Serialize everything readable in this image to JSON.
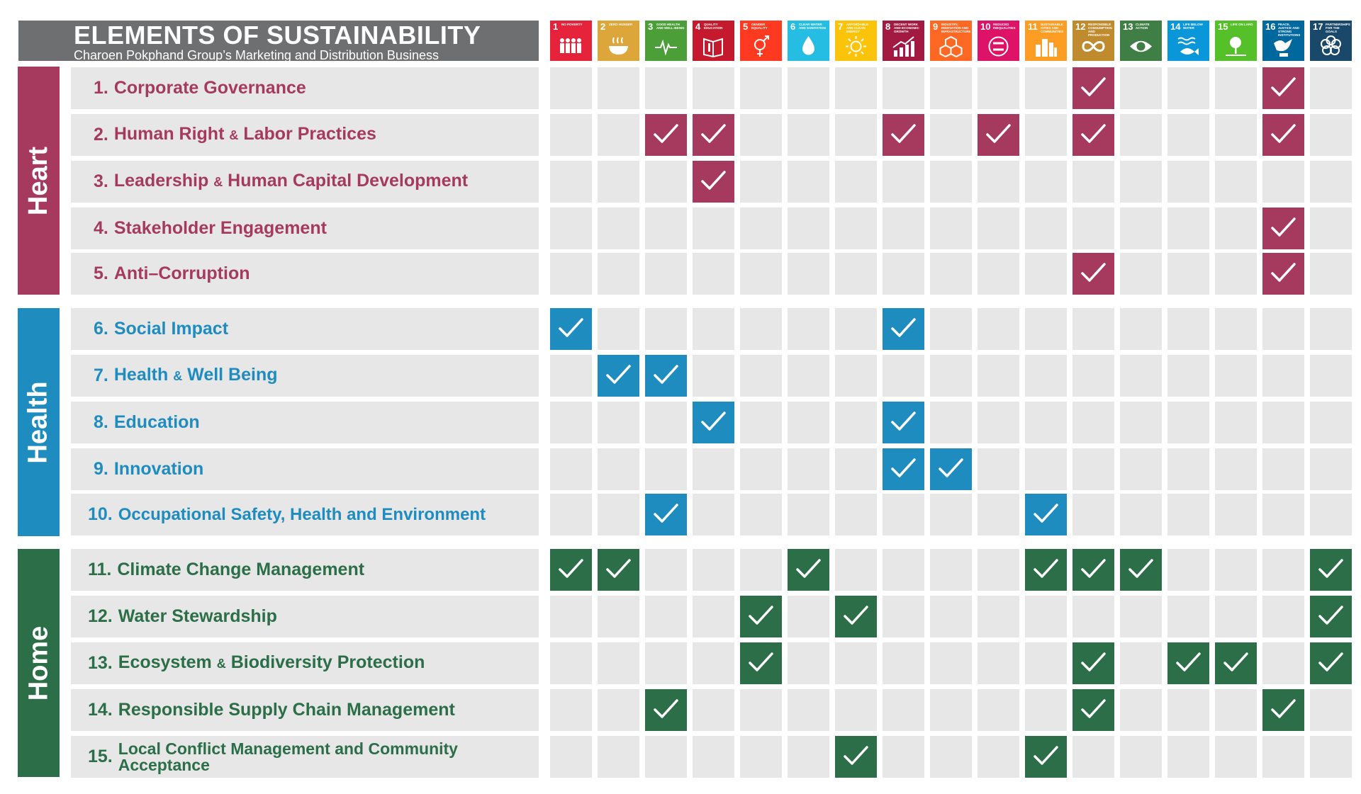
{
  "title": "ELEMENTS OF SUSTAINABILITY",
  "subtitle": "Charoen Pokphand Group’s Marketing and Distribution Business",
  "chart_data": {
    "type": "table",
    "columns": [
      {
        "num": "1",
        "label": "NO POVERTY",
        "color": "#e5243b",
        "icon": "people-icon"
      },
      {
        "num": "2",
        "label": "ZERO HUNGER",
        "color": "#dda63a",
        "icon": "bowl-icon"
      },
      {
        "num": "3",
        "label": "GOOD HEALTH AND WELL-BEING",
        "color": "#4c9f38",
        "icon": "heartbeat-icon"
      },
      {
        "num": "4",
        "label": "QUALITY EDUCATION",
        "color": "#c5192d",
        "icon": "book-icon"
      },
      {
        "num": "5",
        "label": "GENDER EQUALITY",
        "color": "#ff3a21",
        "icon": "gender-icon"
      },
      {
        "num": "6",
        "label": "CLEAN WATER AND SANITATION",
        "color": "#26bde2",
        "icon": "water-icon"
      },
      {
        "num": "7",
        "label": "AFFORDABLE AND CLEAN ENERGY",
        "color": "#fcc30b",
        "icon": "sun-icon"
      },
      {
        "num": "8",
        "label": "DECENT WORK AND ECONOMIC GROWTH",
        "color": "#a21942",
        "icon": "growth-chart-icon"
      },
      {
        "num": "9",
        "label": "INDUSTRY, INNOVATION AND INFRASTRUCTURE",
        "color": "#fd6925",
        "icon": "cubes-icon"
      },
      {
        "num": "10",
        "label": "REDUCED INEQUALITIES",
        "color": "#dd1367",
        "icon": "equality-icon"
      },
      {
        "num": "11",
        "label": "SUSTAINABLE CITIES AND COMMUNITIES",
        "color": "#fd9d24",
        "icon": "city-icon"
      },
      {
        "num": "12",
        "label": "RESPONSIBLE CONSUMPTION AND PRODUCTION",
        "color": "#bf8b2e",
        "icon": "infinity-icon"
      },
      {
        "num": "13",
        "label": "CLIMATE ACTION",
        "color": "#3f7e44",
        "icon": "eye-globe-icon"
      },
      {
        "num": "14",
        "label": "LIFE BELOW WATER",
        "color": "#0a97d9",
        "icon": "fish-icon"
      },
      {
        "num": "15",
        "label": "LIFE ON LAND",
        "color": "#56c02b",
        "icon": "tree-icon"
      },
      {
        "num": "16",
        "label": "PEACE, JUSTICE AND STRONG INSTITUTIONS",
        "color": "#00689d",
        "icon": "dove-icon"
      },
      {
        "num": "17",
        "label": "PARTNERSHIPS FOR THE GOALS",
        "color": "#19486a",
        "icon": "flower-icon"
      }
    ],
    "groups": [
      {
        "name": "Heart",
        "color": "#a63a5e",
        "rows": [
          {
            "num": "1.",
            "parts": [
              "Corporate Governance"
            ],
            "checks": [
              12,
              16
            ]
          },
          {
            "num": "2.",
            "parts": [
              "Human Right",
              "&",
              "Labor Practices"
            ],
            "checks": [
              3,
              4,
              8,
              10,
              12,
              16
            ]
          },
          {
            "num": "3.",
            "parts": [
              "Leadership",
              "&",
              "Human Capital Development"
            ],
            "checks": [
              4
            ]
          },
          {
            "num": "4.",
            "parts": [
              "Stakeholder Engagement"
            ],
            "checks": [
              16
            ]
          },
          {
            "num": "5.",
            "parts": [
              "Anti–Corruption"
            ],
            "checks": [
              12,
              16
            ]
          }
        ]
      },
      {
        "name": "Health",
        "color": "#1f8cc0",
        "rows": [
          {
            "num": "6.",
            "parts": [
              "Social Impact"
            ],
            "checks": [
              1,
              8
            ]
          },
          {
            "num": "7.",
            "parts": [
              "Health",
              "&",
              "Well Being"
            ],
            "checks": [
              2,
              3
            ]
          },
          {
            "num": "8.",
            "parts": [
              "Education"
            ],
            "checks": [
              4,
              8
            ]
          },
          {
            "num": "9.",
            "parts": [
              "Innovation"
            ],
            "checks": [
              8,
              9
            ]
          },
          {
            "num": "10.",
            "parts": [
              "Occupational Safety, Health and Environment"
            ],
            "checks": [
              3,
              11
            ]
          }
        ]
      },
      {
        "name": "Home",
        "color": "#2b6e47",
        "rows": [
          {
            "num": "11.",
            "parts": [
              "Climate Change Management"
            ],
            "checks": [
              1,
              2,
              6,
              11,
              12,
              13,
              17
            ]
          },
          {
            "num": "12.",
            "parts": [
              "Water Stewardship"
            ],
            "checks": [
              5,
              7,
              17
            ]
          },
          {
            "num": "13.",
            "parts": [
              "Ecosystem",
              "&",
              "Biodiversity Protection"
            ],
            "checks": [
              5,
              12,
              14,
              15,
              17
            ]
          },
          {
            "num": "14.",
            "parts": [
              "Responsible Supply Chain Management"
            ],
            "checks": [
              3,
              12,
              16
            ]
          },
          {
            "num": "15.",
            "parts": [
              "Local Conflict Management and Community Acceptance"
            ],
            "checks": [
              7,
              11
            ]
          }
        ]
      }
    ]
  }
}
